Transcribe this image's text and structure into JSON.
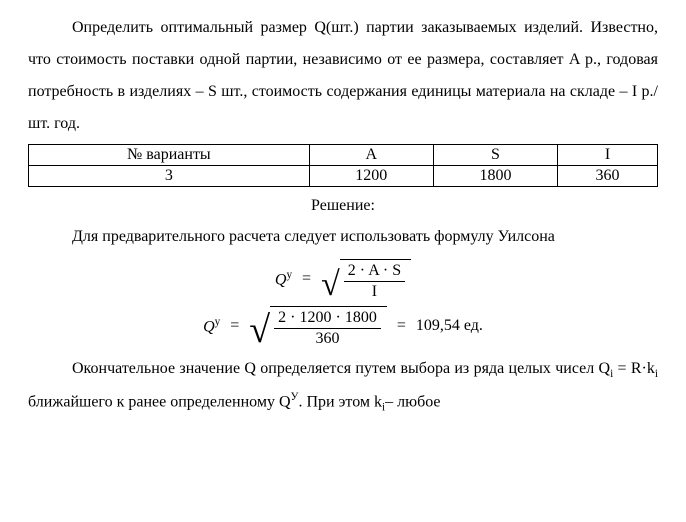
{
  "para1_runs": [
    "Определить оптимальный размер  Q(шт.)  партии заказываемых изделий. Известно, что стоимость поставки одной партии,  независимо от ее  размера, составляет  A  р.,  годовая  потребность  в  изделиях  –  S  шт., стоимость содержания единицы материала на складе – I р./ шт. год."
  ],
  "table": {
    "headers": [
      "№ варианты",
      "A",
      "S",
      "I"
    ],
    "row": [
      "3",
      "1200",
      "1800",
      "360"
    ]
  },
  "solution_label": "Решение:",
  "para2": "Для  предварительного  расчета  следует  использовать  формулу Уилсона",
  "formula1": {
    "lhs_base": "Q",
    "lhs_sup": "у",
    "eq": "=",
    "num": "2 · A · S",
    "den": "I"
  },
  "formula2": {
    "lhs_base": "Q",
    "lhs_sup": "у",
    "eq": "=",
    "num": "2 · 1200 · 1800",
    "den": "360",
    "eq2": "=",
    "result": "109,54 ед."
  },
  "para3_prefix": "Окончательное значение  Q  определяется путем выбора из ряда целых чисел  Q",
  "para3_sub_i": "i",
  "para3_mid1": " =  R·k",
  "para3_sub_i2": "i",
  "para3_mid2": " ближайшего к ранее определенному  Q",
  "para3_sup_y": "У",
  "para3_mid3": ".  При этом k",
  "para3_sub_i3": "i",
  "para3_tail": "–  любое"
}
